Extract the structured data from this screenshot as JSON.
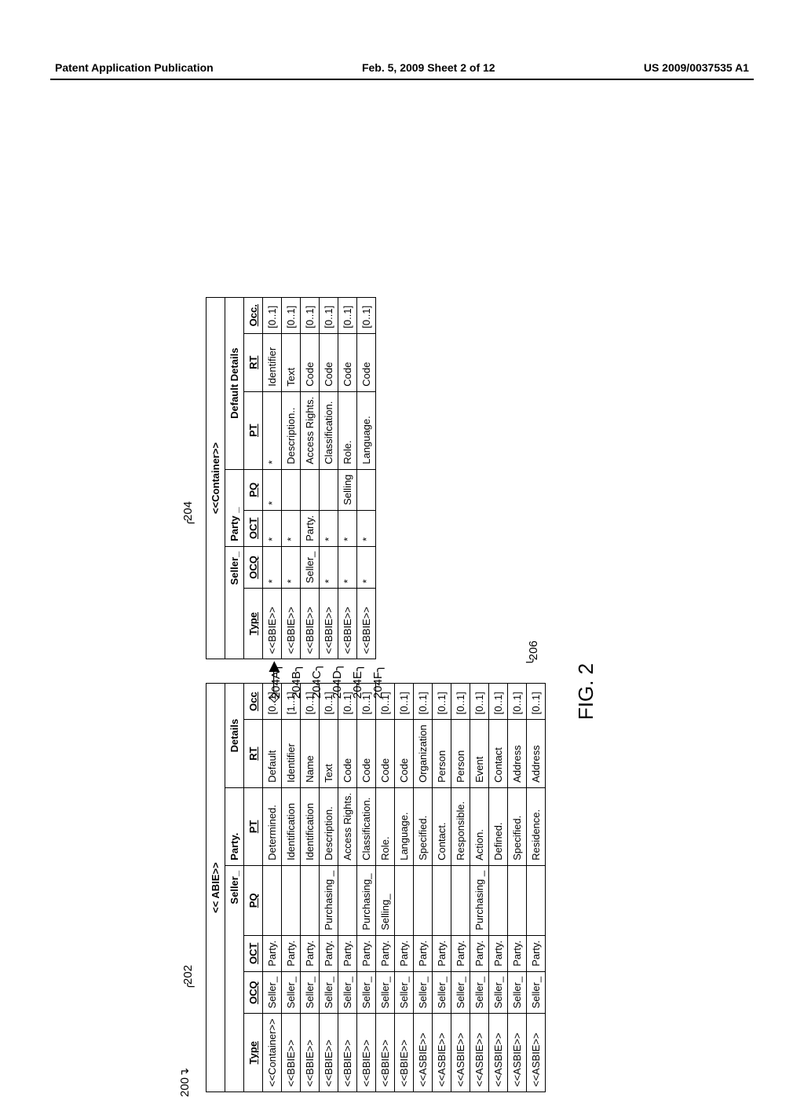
{
  "header": {
    "left": "Patent Application Publication",
    "mid": "Feb. 5, 2009  Sheet 2 of 12",
    "right": "US 2009/0037535 A1"
  },
  "figure": {
    "caption": "FIG. 2",
    "ref200": "200",
    "ref202": "202",
    "ref204": "204",
    "ref206": "206",
    "ref204A": "204A",
    "ref204B": "204B",
    "ref204C": "204C",
    "ref204D": "204D",
    "ref204E": "204E",
    "ref204F": "204F"
  },
  "table202": {
    "label_top": "<< ABIE>>",
    "title_left": "Seller_",
    "title_right": "Party.",
    "details": "Details",
    "head": {
      "type": "Type",
      "ocq": "OCQ",
      "oct": "OCT",
      "pq": "PQ",
      "pt": "PT",
      "rt": "RT",
      "occ": "Occ"
    },
    "rows": [
      {
        "type": "<<Container>>",
        "ocq": "Seller_",
        "oct": "Party.",
        "pq": "",
        "pt": "Determined.",
        "rt": "Default",
        "occ": "[0..1]"
      },
      {
        "type": "<<BBIE>>",
        "ocq": "Seller_",
        "oct": "Party.",
        "pq": "",
        "pt": "Identification",
        "rt": "Identifier",
        "occ": "[1..1]"
      },
      {
        "type": "<<BBIE>>",
        "ocq": "Seller_",
        "oct": "Party.",
        "pq": "",
        "pt": "Identification",
        "rt": "Name",
        "occ": "[0..1]"
      },
      {
        "type": "<<BBIE>>",
        "ocq": "Seller_",
        "oct": "Party.",
        "pq": "Purchasing _",
        "pt": "Description.",
        "rt": "Text",
        "occ": "[0..1]"
      },
      {
        "type": "<<BBIE>>",
        "ocq": "Seller_",
        "oct": "Party.",
        "pq": "",
        "pt": "Access Rights.",
        "rt": "Code",
        "occ": "[0..1]"
      },
      {
        "type": "<<BBIE>>",
        "ocq": "Seller_",
        "oct": "Party.",
        "pq": "Purchasing_",
        "pt": "Classification.",
        "rt": "Code",
        "occ": "[0..1]"
      },
      {
        "type": "<<BBIE>>",
        "ocq": "Seller_",
        "oct": "Party.",
        "pq": "Selling_",
        "pt": "Role.",
        "rt": "Code",
        "occ": "[0..1]"
      },
      {
        "type": "<<BBIE>>",
        "ocq": "Seller_",
        "oct": "Party.",
        "pq": "",
        "pt": "Language.",
        "rt": "Code",
        "occ": "[0..1]"
      },
      {
        "type": "<<ASBIE>>",
        "ocq": "Seller_",
        "oct": "Party.",
        "pq": "",
        "pt": "Specified.",
        "rt": "Organization",
        "occ": "[0..1]"
      },
      {
        "type": "<<ASBIE>>",
        "ocq": "Seller_",
        "oct": "Party.",
        "pq": "",
        "pt": "Contact.",
        "rt": "Person",
        "occ": "[0..1]"
      },
      {
        "type": "<<ASBIE>>",
        "ocq": "Seller_",
        "oct": "Party.",
        "pq": "",
        "pt": "Responsible.",
        "rt": "Person",
        "occ": "[0..1]"
      },
      {
        "type": "<<ASBIE>>",
        "ocq": "Seller_",
        "oct": "Party.",
        "pq": "Purchasing _",
        "pt": "Action.",
        "rt": "Event",
        "occ": "[0..1]"
      },
      {
        "type": "<<ASBIE>>",
        "ocq": "Seller_",
        "oct": "Party.",
        "pq": "",
        "pt": "Defined.",
        "rt": "Contact",
        "occ": "[0..1]"
      },
      {
        "type": "<<ASBIE>>",
        "ocq": "Seller_",
        "oct": "Party.",
        "pq": "",
        "pt": "Specified.",
        "rt": "Address",
        "occ": "[0..1]"
      },
      {
        "type": "<<ASBIE>>",
        "ocq": "Seller_",
        "oct": "Party.",
        "pq": "",
        "pt": "Residence.",
        "rt": "Address",
        "occ": "[0..1]"
      }
    ]
  },
  "table204": {
    "label_top": "<<Container>>",
    "title_left": "Seller_",
    "title_mid": "Party _",
    "details": "Default  Details",
    "head": {
      "type": "Type",
      "ocq": "OCQ",
      "oct": "OCT",
      "pq": "PQ",
      "pt": "PT",
      "rt": "RT",
      "occ": "Occ."
    },
    "rows": [
      {
        "type": "<<BBIE>>",
        "ocq": "*",
        "oct": "*",
        "pq": "*",
        "pt": "*",
        "rt": "Identifier",
        "occ": "[0..1]"
      },
      {
        "type": "<<BBIE>>",
        "ocq": "*",
        "oct": "*",
        "pq": "",
        "pt": "Description..",
        "rt": "Text",
        "occ": "[0..1]"
      },
      {
        "type": "<<BBIE>>",
        "ocq": "Seller_",
        "oct": "Party.",
        "pq": "",
        "pt": "Access Rights.",
        "rt": "Code",
        "occ": "[0..1]"
      },
      {
        "type": "<<BBIE>>",
        "ocq": "*",
        "oct": "*",
        "pq": "",
        "pt": "Classification.",
        "rt": "Code",
        "occ": "[0..1]"
      },
      {
        "type": "<<BBIE>>",
        "ocq": "*",
        "oct": "*",
        "pq": "Selling",
        "pt": "Role.",
        "rt": "Code",
        "occ": "[0..1]"
      },
      {
        "type": "<<BBIE>>",
        "ocq": "*",
        "oct": "*",
        "pq": "",
        "pt": "Language.",
        "rt": "Code",
        "occ": "[0..1]"
      }
    ]
  }
}
